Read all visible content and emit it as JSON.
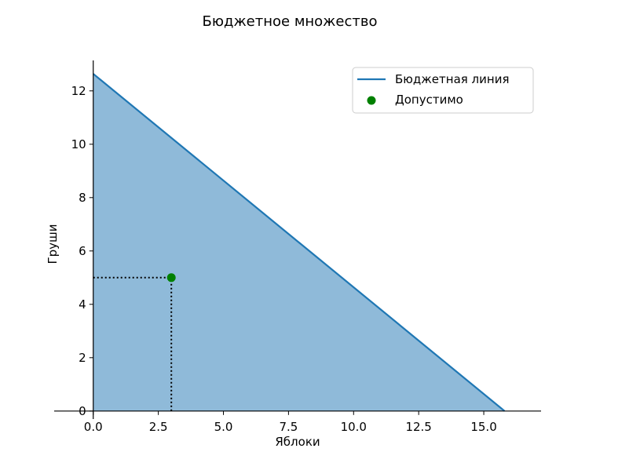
{
  "chart_data": {
    "type": "area",
    "title": "Бюджетное множество",
    "xlabel": "Яблоки",
    "ylabel": "Груши",
    "xlim": [
      -1.5,
      17.2
    ],
    "ylim": [
      -0.3,
      13.2
    ],
    "x_ticks": [
      0.0,
      2.5,
      5.0,
      7.5,
      10.0,
      12.5,
      15.0
    ],
    "x_tick_labels": [
      "0.0",
      "2.5",
      "5.0",
      "7.5",
      "10.0",
      "12.5",
      "15.0"
    ],
    "y_ticks": [
      0,
      2,
      4,
      6,
      8,
      10,
      12
    ],
    "y_tick_labels": [
      "0",
      "2",
      "4",
      "6",
      "8",
      "10",
      "12"
    ],
    "grid": false,
    "legend_position": "top-right",
    "series": [
      {
        "name": "Бюджетная линия",
        "kind": "line",
        "x": [
          0,
          15.8
        ],
        "y": [
          12.64,
          0
        ],
        "color": "#1f77b4"
      },
      {
        "name": "Допустимо",
        "kind": "scatter",
        "x": [
          3
        ],
        "y": [
          5
        ],
        "color": "#008000"
      }
    ],
    "fill": {
      "color": "#8fbad9",
      "under": "Бюджетная линия"
    },
    "guide_lines": {
      "style": "dotted",
      "color": "#000000",
      "to_point": {
        "x": 3,
        "y": 5
      }
    }
  }
}
